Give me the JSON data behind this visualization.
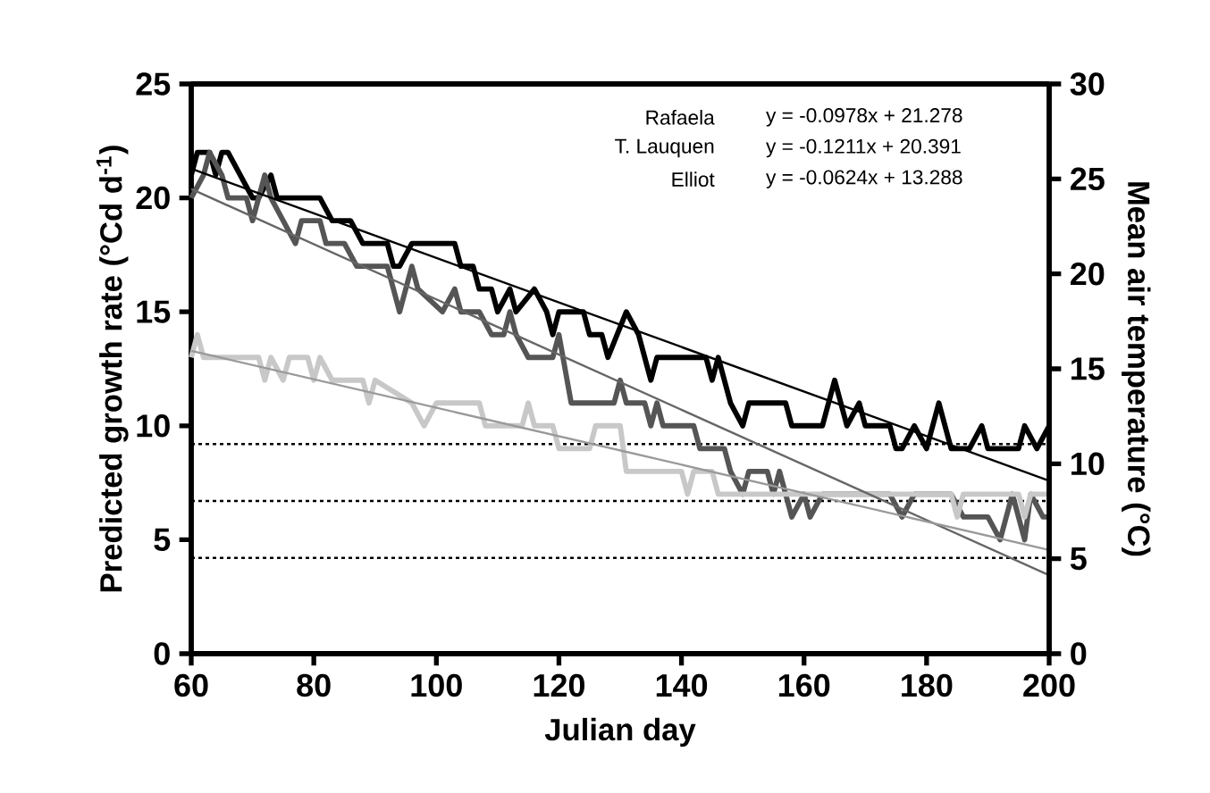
{
  "chart_data": {
    "type": "line",
    "xlabel": "Julian day",
    "ylabel": "Predicted growth rate (°Cd d$^{-1}$)",
    "y2label": "Mean air temperature  (°C)",
    "xlim": [
      60,
      200
    ],
    "xticks": [
      60,
      80,
      100,
      120,
      140,
      160,
      180,
      200
    ],
    "ylim": [
      0,
      25
    ],
    "yticks": [
      0,
      5,
      10,
      15,
      20,
      25
    ],
    "y2lim": [
      0,
      30
    ],
    "y2ticks": [
      0,
      5,
      10,
      15,
      20,
      25,
      30
    ],
    "annotations": [
      "Rafaela",
      "y = -0.0978x + 21.278",
      "T. Lauquen",
      "y = -0.1211x + 20.391",
      "Elliot",
      "y = -0.0624x + 13.288"
    ],
    "ref_lines": [
      {
        "axis": "y",
        "value": 9.2,
        "line_style": "dotted",
        "color": "#000000"
      },
      {
        "axis": "y",
        "value": 6.7,
        "line_style": "dotted",
        "color": "#000000"
      },
      {
        "axis": "y",
        "value": 4.2,
        "line_style": "dotted",
        "color": "#000000"
      }
    ],
    "series": [
      {
        "color": "#000000",
        "x": [
          60,
          61,
          63,
          64,
          65,
          66,
          68,
          70,
          71,
          73,
          74,
          81,
          83,
          86,
          88,
          92,
          93,
          94,
          96,
          103,
          104,
          106,
          107,
          109,
          110,
          112,
          113,
          116,
          118,
          119,
          120,
          124,
          125,
          127,
          128,
          131,
          133,
          135,
          136,
          144,
          145,
          146,
          147,
          148,
          150,
          151,
          157,
          158,
          163,
          165,
          167,
          169,
          170,
          174,
          175,
          176,
          178,
          180,
          182,
          184,
          187,
          189,
          190,
          195,
          196,
          198,
          200
        ],
        "values": [
          21,
          22,
          22,
          21,
          22,
          22,
          21,
          20,
          20,
          21,
          20,
          20,
          19,
          19,
          18,
          18,
          17,
          17,
          18,
          18,
          17,
          17,
          16,
          16,
          15,
          16,
          15,
          16,
          15,
          14,
          15,
          15,
          14,
          14,
          13,
          15,
          14,
          12,
          13,
          13,
          12,
          13,
          12,
          11,
          10,
          11,
          11,
          10,
          10,
          12,
          10,
          11,
          10,
          10,
          9,
          9,
          10,
          9,
          11,
          9,
          9,
          10,
          9,
          9,
          10,
          9,
          10
        ]
      },
      {
        "color": "#555555",
        "x": [
          60,
          62,
          63,
          65,
          66,
          69,
          70,
          72,
          73,
          75,
          77,
          78,
          81,
          82,
          85,
          87,
          92,
          94,
          96,
          97,
          101,
          103,
          104,
          107,
          109,
          111,
          112,
          113,
          115,
          119,
          120,
          122,
          129,
          130,
          131,
          134,
          135,
          136,
          137,
          142,
          143,
          147,
          148,
          150,
          151,
          154,
          155,
          156,
          158,
          160,
          161,
          163,
          172,
          174,
          176,
          178,
          184,
          186,
          190,
          192,
          194,
          196,
          197,
          199,
          200
        ],
        "values": [
          20,
          21,
          22,
          21,
          20,
          20,
          19,
          21,
          20,
          19,
          18,
          19,
          19,
          18,
          18,
          17,
          17,
          15,
          17,
          16,
          15,
          16,
          15,
          15,
          14,
          14,
          15,
          14,
          13,
          13,
          14,
          11,
          11,
          12,
          11,
          11,
          10,
          11,
          10,
          10,
          9,
          9,
          8,
          7,
          8,
          8,
          7,
          8,
          6,
          7,
          6,
          7,
          7,
          7,
          6,
          7,
          7,
          6,
          6,
          5,
          7,
          5,
          7,
          6,
          6
        ]
      },
      {
        "color": "#c8c8c8",
        "x": [
          60,
          61,
          62,
          71,
          72,
          73,
          75,
          76,
          79,
          80,
          81,
          83,
          88,
          89,
          90,
          96,
          98,
          100,
          107,
          108,
          114,
          115,
          116,
          119,
          120,
          125,
          126,
          130,
          131,
          140,
          141,
          142,
          145,
          146,
          160,
          168,
          175,
          178,
          184,
          185,
          186,
          195,
          196,
          197,
          200
        ],
        "values": [
          13,
          14,
          13,
          13,
          12,
          13,
          12,
          13,
          13,
          12,
          13,
          12,
          12,
          11,
          12,
          11,
          10,
          11,
          11,
          10,
          10,
          11,
          10,
          10,
          9,
          9,
          10,
          10,
          8,
          8,
          7,
          8,
          8,
          7,
          7,
          7,
          7,
          7,
          7,
          6,
          7,
          7,
          6,
          7,
          7
        ]
      },
      {
        "color": "#000000",
        "x": [
          60,
          200
        ],
        "values": [
          21.28,
          7.59
        ]
      },
      {
        "color": "#666666",
        "x": [
          60,
          200
        ],
        "values": [
          20.39,
          3.44
        ]
      },
      {
        "color": "#999999",
        "x": [
          60,
          200
        ],
        "values": [
          13.29,
          4.55
        ]
      }
    ]
  }
}
